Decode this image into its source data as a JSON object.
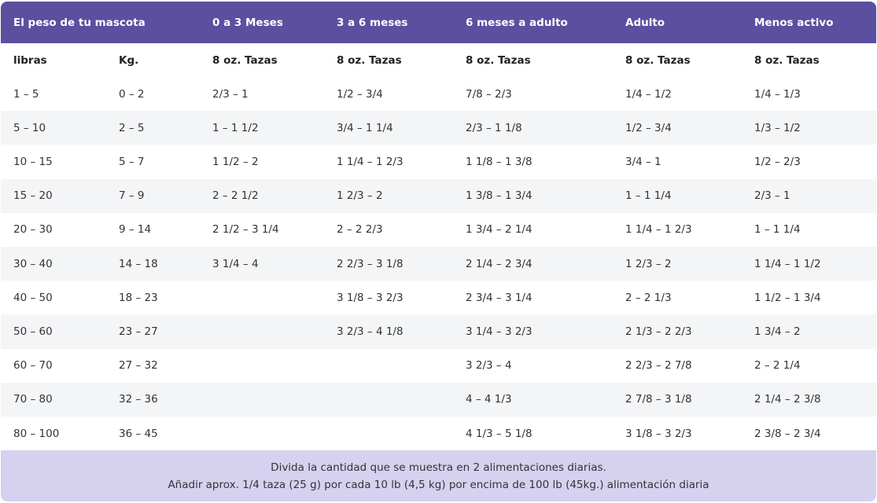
{
  "header": [
    "El peso de tu mascota",
    "0 a 3 Meses",
    "3 a 6 meses",
    "6 meses a adulto",
    "Adulto",
    "Menos activo"
  ],
  "subheader": [
    "libras",
    "Kg.",
    "8 oz. Tazas",
    "8 oz. Tazas",
    "8 oz. Tazas",
    "8 oz. Tazas",
    "8 oz. Tazas"
  ],
  "rows": [
    [
      "1 – 5",
      "0 – 2",
      "2/3 – 1",
      "1/2 – 3/4",
      "7/8 – 2/3",
      "1/4 – 1/2",
      "1/4 – 1/3"
    ],
    [
      "5 – 10",
      "2 – 5",
      "1 – 1 1/2",
      "3/4 – 1 1/4",
      "2/3 – 1 1/8",
      "1/2 – 3/4",
      "1/3 – 1/2"
    ],
    [
      "10 – 15",
      "5 – 7",
      "1 1/2 – 2",
      "1 1/4 – 1 2/3",
      "1 1/8 – 1 3/8",
      "3/4 – 1",
      "1/2 – 2/3"
    ],
    [
      "15 – 20",
      "7 – 9",
      "2 – 2 1/2",
      "1 2/3 – 2",
      "1 3/8 – 1 3/4",
      "1 – 1 1/4",
      "2/3 – 1"
    ],
    [
      "20 – 30",
      "9 – 14",
      "2 1/2 – 3 1/4",
      "2 – 2 2/3",
      "1 3/4 – 2 1/4",
      "1 1/4 – 1 2/3",
      "1 – 1 1/4"
    ],
    [
      "30 – 40",
      "14 – 18",
      "3 1/4 – 4",
      "2 2/3 – 3 1/8",
      "2 1/4 – 2 3/4",
      "1 2/3 – 2",
      "1 1/4 – 1 1/2"
    ],
    [
      "40 – 50",
      "18 – 23",
      null,
      "3 1/8 – 3 2/3",
      "2 3/4 – 3 1/4",
      "2 – 2 1/3",
      "1 1/2 – 1 3/4"
    ],
    [
      "50 – 60",
      "23 – 27",
      null,
      "3 2/3 – 4 1/8",
      "3 1/4 – 3 2/3",
      "2 1/3 – 2 2/3",
      "1 3/4 – 2"
    ],
    [
      "60 – 70",
      "27 – 32",
      null,
      null,
      "3 2/3 – 4",
      "2 2/3 – 2 7/8",
      "2 – 2 1/4"
    ],
    [
      "70 – 80",
      "32 – 36",
      null,
      null,
      "4 – 4 1/3",
      "2 7/8 – 3 1/8",
      "2 1/4 – 2 3/8"
    ],
    [
      "80 – 100",
      "36 – 45",
      null,
      null,
      "4 1/3 – 5 1/8",
      "3 1/8 – 3 2/3",
      "2 3/8 – 2 3/4"
    ]
  ],
  "footer": [
    "Divida la cantidad que se muestra en 2 alimentaciones diarias.",
    "Añadir aprox. 1/4 taza (25 g) por cada 10 lb (4,5 kg) por encima de 100 lb (45kg.) alimentación diaria"
  ]
}
